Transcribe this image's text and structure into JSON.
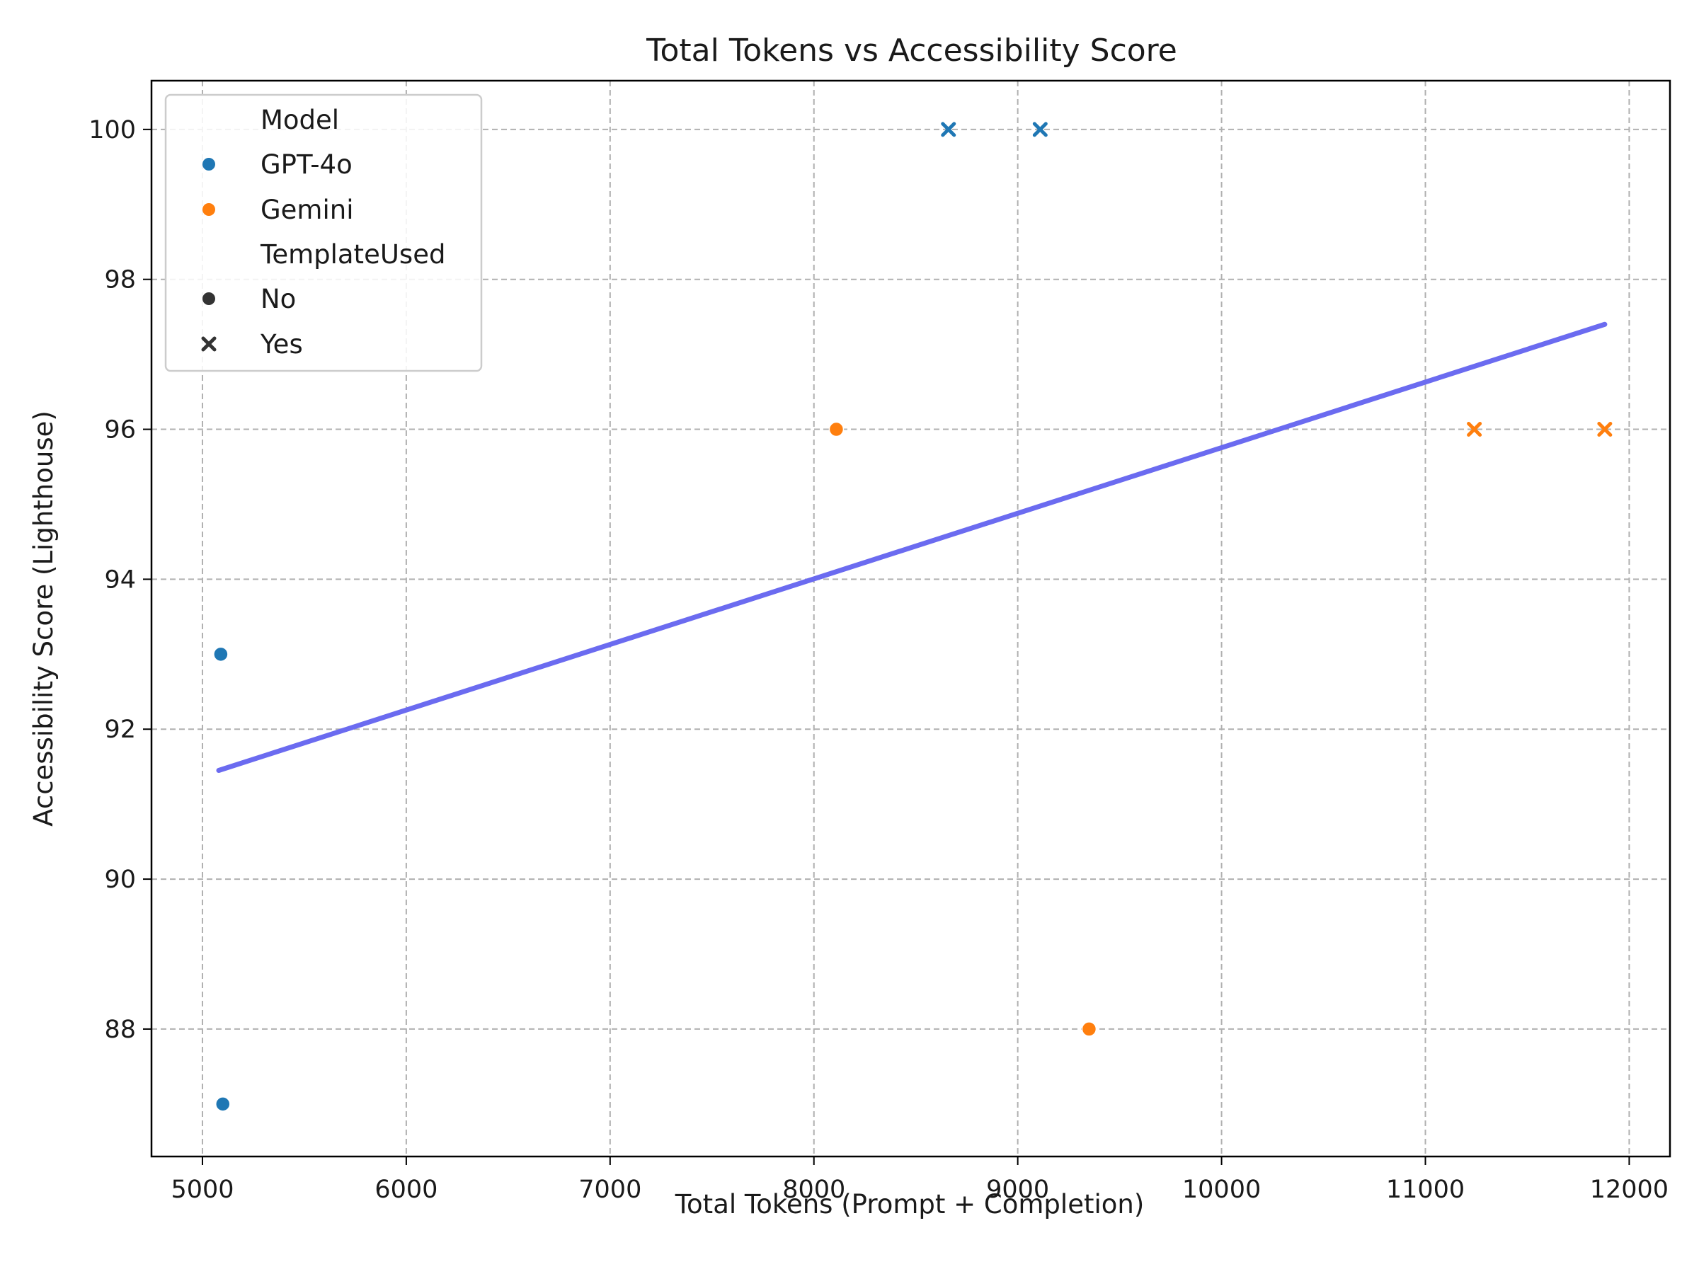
{
  "chart_data": {
    "type": "scatter",
    "title": "Total Tokens vs Accessibility Score",
    "xlabel": "Total Tokens (Prompt + Completion)",
    "ylabel": "Accessibility Score (Lighthouse)",
    "xlim": [
      4750,
      12200
    ],
    "ylim": [
      86.3,
      100.65
    ],
    "xticks": [
      5000,
      6000,
      7000,
      8000,
      9000,
      10000,
      11000,
      12000
    ],
    "yticks": [
      88,
      90,
      92,
      94,
      96,
      98,
      100
    ],
    "grid": true,
    "legend": {
      "placement": "top-left",
      "hue_title": "Model",
      "style_title": "TemplateUsed",
      "hue_entries": [
        {
          "label": "GPT-4o",
          "color": "#1f77b4"
        },
        {
          "label": "Gemini",
          "color": "#ff7f0e"
        }
      ],
      "style_entries": [
        {
          "label": "No",
          "marker": "circle"
        },
        {
          "label": "Yes",
          "marker": "x"
        }
      ]
    },
    "series": [
      {
        "name": "GPT-4o",
        "color": "#1f77b4",
        "points": [
          {
            "x": 5090,
            "y": 93,
            "template": "No"
          },
          {
            "x": 5100,
            "y": 87,
            "template": "No"
          },
          {
            "x": 8660,
            "y": 100,
            "template": "Yes"
          },
          {
            "x": 9110,
            "y": 100,
            "template": "Yes"
          }
        ]
      },
      {
        "name": "Gemini",
        "color": "#ff7f0e",
        "points": [
          {
            "x": 8110,
            "y": 96,
            "template": "No"
          },
          {
            "x": 9350,
            "y": 88,
            "template": "No"
          },
          {
            "x": 11240,
            "y": 96,
            "template": "Yes"
          },
          {
            "x": 11880,
            "y": 96,
            "template": "Yes"
          }
        ]
      }
    ],
    "trend_line": {
      "x": [
        5080,
        11880
      ],
      "y": [
        91.45,
        97.4
      ],
      "color": "#6b6bf0"
    }
  }
}
